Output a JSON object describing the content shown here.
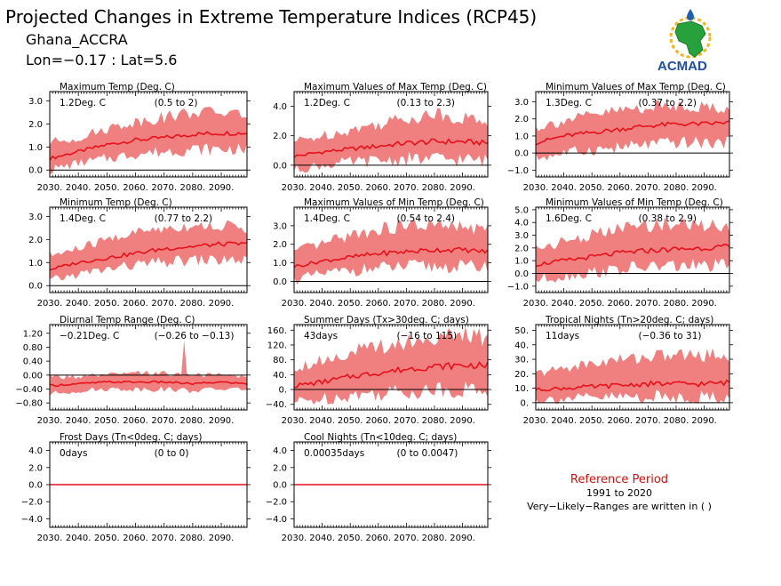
{
  "header": {
    "title": "Projected Changes in Extreme Temperature Indices (RCP45)",
    "location": "Ghana_ACCRA",
    "coords": "Lon=−0.17 : Lat=5.6"
  },
  "logo": {
    "text": "ACMAD"
  },
  "reference": {
    "title": "Reference Period",
    "years": "1991 to 2020",
    "note": "Very−Likely−Ranges are written in ( )"
  },
  "colors": {
    "band": "#f08080",
    "line": "#e8101a",
    "zero": "#000000",
    "accent": "#cc1111"
  },
  "chart_data": [
    {
      "type": "area",
      "title": "Maximum Temp (Deg. C)",
      "stat": "1.2Deg. C",
      "range": "(0.5 to 2)",
      "x_ticks": [
        "2030.",
        "2040.",
        "2050.",
        "2060.",
        "2070.",
        "2080.",
        "2090."
      ],
      "x_range": [
        2030,
        2099
      ],
      "y_range": [
        -0.3,
        3.4
      ],
      "y_ticks": [
        "3.0",
        "2.0",
        "1.0",
        "0.0"
      ],
      "series": [
        {
          "years": [
            2030,
            2040,
            2050,
            2060,
            2070,
            2080,
            2090,
            2099
          ],
          "median": [
            0.5,
            0.8,
            1.1,
            1.3,
            1.4,
            1.55,
            1.6,
            1.6
          ],
          "low": [
            0.0,
            0.3,
            0.5,
            0.7,
            0.8,
            0.9,
            0.9,
            0.9
          ],
          "high": [
            1.2,
            1.4,
            1.8,
            2.1,
            2.3,
            2.5,
            2.5,
            2.4
          ]
        }
      ]
    },
    {
      "type": "area",
      "title": "Maximum Values of Max Temp (Deg. C)",
      "stat": "1.2Deg. C",
      "range": "(0.13 to 2.3)",
      "x_ticks": [
        "2030.",
        "2040.",
        "2050.",
        "2060.",
        "2070.",
        "2080.",
        "2090."
      ],
      "x_range": [
        2030,
        2099
      ],
      "y_range": [
        -0.8,
        5.0
      ],
      "y_ticks": [
        "4.0",
        "2.0",
        "0.0"
      ],
      "series": [
        {
          "years": [
            2030,
            2040,
            2050,
            2060,
            2070,
            2080,
            2090,
            2099
          ],
          "median": [
            0.6,
            0.9,
            1.1,
            1.3,
            1.5,
            1.6,
            1.6,
            1.5
          ],
          "low": [
            -0.3,
            0.0,
            0.2,
            0.3,
            0.4,
            0.4,
            0.4,
            0.3
          ],
          "high": [
            1.6,
            2.0,
            2.4,
            2.8,
            3.2,
            3.5,
            3.2,
            3.0
          ]
        }
      ]
    },
    {
      "type": "area",
      "title": "Minimum Values of Max Temp (Deg. C)",
      "stat": "1.3Deg. C",
      "range": "(0.37 to 2.2)",
      "x_ticks": [
        "2030.",
        "2040.",
        "2050.",
        "2060.",
        "2070.",
        "2080.",
        "2090."
      ],
      "x_range": [
        2030,
        2099
      ],
      "y_range": [
        -1.4,
        3.6
      ],
      "y_ticks": [
        "3.0",
        "2.0",
        "1.0",
        "0.0",
        "−1.0"
      ],
      "series": [
        {
          "years": [
            2030,
            2040,
            2050,
            2060,
            2070,
            2080,
            2090,
            2099
          ],
          "median": [
            0.6,
            1.0,
            1.2,
            1.4,
            1.6,
            1.7,
            1.7,
            1.8
          ],
          "low": [
            -0.3,
            0.0,
            0.2,
            0.3,
            0.5,
            0.6,
            0.6,
            0.6
          ],
          "high": [
            1.5,
            1.9,
            2.2,
            2.5,
            2.7,
            2.8,
            2.7,
            2.6
          ]
        }
      ]
    },
    {
      "type": "area",
      "title": "Minimum Temp (Deg. C)",
      "stat": "1.4Deg. C",
      "range": "(0.77 to 2.2)",
      "x_ticks": [
        "2030.",
        "2040.",
        "2050.",
        "2060.",
        "2070.",
        "2080.",
        "2090."
      ],
      "x_range": [
        2030,
        2099
      ],
      "y_range": [
        -0.3,
        3.4
      ],
      "y_ticks": [
        "3.0",
        "2.0",
        "1.0",
        "0.0"
      ],
      "series": [
        {
          "years": [
            2030,
            2040,
            2050,
            2060,
            2070,
            2080,
            2090,
            2099
          ],
          "median": [
            0.7,
            1.0,
            1.2,
            1.4,
            1.6,
            1.7,
            1.8,
            1.8
          ],
          "low": [
            0.2,
            0.5,
            0.7,
            0.9,
            1.0,
            1.1,
            1.1,
            1.1
          ],
          "high": [
            1.3,
            1.6,
            2.0,
            2.3,
            2.5,
            2.6,
            2.6,
            2.5
          ]
        }
      ]
    },
    {
      "type": "area",
      "title": "Maximum Values of Min Temp (Deg. C)",
      "stat": "1.4Deg. C",
      "range": "(0.54 to 2.4)",
      "x_ticks": [
        "2030.",
        "2040.",
        "2050.",
        "2060.",
        "2070.",
        "2080.",
        "2090."
      ],
      "x_range": [
        2030,
        2099
      ],
      "y_range": [
        -0.6,
        4.0
      ],
      "y_ticks": [
        "3.0",
        "2.0",
        "1.0",
        "0.0"
      ],
      "series": [
        {
          "years": [
            2030,
            2040,
            2050,
            2060,
            2070,
            2080,
            2090,
            2099
          ],
          "median": [
            0.8,
            1.1,
            1.3,
            1.5,
            1.6,
            1.7,
            1.7,
            1.6
          ],
          "low": [
            0.1,
            0.4,
            0.6,
            0.7,
            0.8,
            0.8,
            0.8,
            0.8
          ],
          "high": [
            1.6,
            2.0,
            2.5,
            2.8,
            3.0,
            3.0,
            2.9,
            2.8
          ]
        }
      ]
    },
    {
      "type": "area",
      "title": "Minimum Values of Min Temp (Deg. C)",
      "stat": "1.6Deg. C",
      "range": "(0.38 to 2.9)",
      "x_ticks": [
        "2030.",
        "2040.",
        "2050.",
        "2060.",
        "2070.",
        "2080.",
        "2090."
      ],
      "x_range": [
        2030,
        2099
      ],
      "y_range": [
        -1.5,
        5.2
      ],
      "y_ticks": [
        "5.0",
        "4.0",
        "3.0",
        "2.0",
        "1.0",
        "0.0",
        "−1.0"
      ],
      "series": [
        {
          "years": [
            2030,
            2040,
            2050,
            2060,
            2070,
            2080,
            2090,
            2099
          ],
          "median": [
            0.7,
            1.0,
            1.3,
            1.6,
            1.8,
            1.9,
            2.0,
            2.1
          ],
          "low": [
            -0.5,
            -0.2,
            0.1,
            0.3,
            0.5,
            0.6,
            0.6,
            0.6
          ],
          "high": [
            2.0,
            2.5,
            3.0,
            3.5,
            3.8,
            3.9,
            3.8,
            3.7
          ]
        }
      ]
    },
    {
      "type": "area",
      "title": "Diurnal Temp Range (Deg. C)",
      "stat": "−0.21Deg. C",
      "range": "(−0.26 to −0.13)",
      "x_ticks": [
        "2030.",
        "2040.",
        "2050.",
        "2060.",
        "2070.",
        "2080.",
        "2090."
      ],
      "x_range": [
        2030,
        2099
      ],
      "y_range": [
        -1.0,
        1.45
      ],
      "y_ticks": [
        "1.20",
        "0.80",
        "0.40",
        "0.00",
        "−0.40",
        "−0.80"
      ],
      "series": [
        {
          "years": [
            2030,
            2040,
            2050,
            2060,
            2070,
            2080,
            2090,
            2099
          ],
          "median": [
            -0.3,
            -0.25,
            -0.2,
            -0.2,
            -0.2,
            -0.25,
            -0.2,
            -0.25
          ],
          "low": [
            -0.55,
            -0.45,
            -0.4,
            -0.4,
            -0.4,
            -0.45,
            -0.4,
            -0.4
          ],
          "high": [
            -0.05,
            -0.05,
            0.0,
            0.05,
            0.05,
            0.0,
            0.0,
            -0.05
          ]
        }
      ],
      "annotations": [
        {
          "label": "spike",
          "year": 2077,
          "value": 1.0
        }
      ]
    },
    {
      "type": "area",
      "title": "Summer Days (Tx>30deg. C; days)",
      "stat": "43days",
      "range": "(−16 to 115)",
      "x_ticks": [
        "2030.",
        "2040.",
        "2050.",
        "2060.",
        "2070.",
        "2080.",
        "2090."
      ],
      "x_range": [
        2030,
        2099
      ],
      "y_range": [
        -55,
        175
      ],
      "y_ticks": [
        "160.",
        "120.",
        "80.",
        "40.",
        "0.",
        "−40."
      ],
      "series": [
        {
          "years": [
            2030,
            2040,
            2050,
            2060,
            2070,
            2080,
            2090,
            2099
          ],
          "median": [
            10,
            20,
            35,
            45,
            55,
            62,
            65,
            65
          ],
          "low": [
            -35,
            -25,
            -15,
            -10,
            -5,
            0,
            0,
            0
          ],
          "high": [
            60,
            80,
            100,
            115,
            130,
            140,
            145,
            140
          ]
        }
      ]
    },
    {
      "type": "area",
      "title": "Tropical Nights (Tn>20deg. C; days)",
      "stat": "11days",
      "range": "(−0.36 to 31)",
      "x_ticks": [
        "2030.",
        "2040.",
        "2050.",
        "2060.",
        "2070.",
        "2080.",
        "2090."
      ],
      "x_range": [
        2030,
        2099
      ],
      "y_range": [
        -5,
        54
      ],
      "y_ticks": [
        "50.",
        "40.",
        "30.",
        "20.",
        "10.",
        "0."
      ],
      "series": [
        {
          "years": [
            2030,
            2040,
            2050,
            2060,
            2070,
            2080,
            2090,
            2099
          ],
          "median": [
            9,
            10,
            11,
            12,
            13,
            13,
            13,
            14
          ],
          "low": [
            2,
            3,
            3,
            4,
            4,
            4,
            4,
            4
          ],
          "high": [
            20,
            24,
            27,
            30,
            32,
            33,
            33,
            33
          ]
        }
      ]
    },
    {
      "type": "area",
      "title": "Frost Days (Tn<0deg. C; days)",
      "stat": "0days",
      "range": "(0 to 0)",
      "x_ticks": [
        "2030.",
        "2040.",
        "2050.",
        "2060.",
        "2070.",
        "2080.",
        "2090."
      ],
      "x_range": [
        2030,
        2099
      ],
      "y_range": [
        -5,
        5
      ],
      "y_ticks": [
        "4.0",
        "2.0",
        "0.0",
        "−2.0",
        "−4.0"
      ],
      "series": [
        {
          "years": [
            2030,
            2099
          ],
          "median": [
            0,
            0
          ],
          "low": [
            0,
            0
          ],
          "high": [
            0,
            0
          ]
        }
      ]
    },
    {
      "type": "area",
      "title": "Cool Nights (Tn<10deg. C; days)",
      "stat": "0.00035days",
      "range": "(0 to 0.0047)",
      "x_ticks": [
        "2030.",
        "2040.",
        "2050.",
        "2060.",
        "2070.",
        "2080.",
        "2090."
      ],
      "x_range": [
        2030,
        2099
      ],
      "y_range": [
        -5,
        5
      ],
      "y_ticks": [
        "4.0",
        "2.0",
        "0.0",
        "−2.0",
        "−4.0"
      ],
      "series": [
        {
          "years": [
            2030,
            2099
          ],
          "median": [
            0,
            0
          ],
          "low": [
            0,
            0
          ],
          "high": [
            0,
            0.02
          ]
        }
      ]
    }
  ]
}
